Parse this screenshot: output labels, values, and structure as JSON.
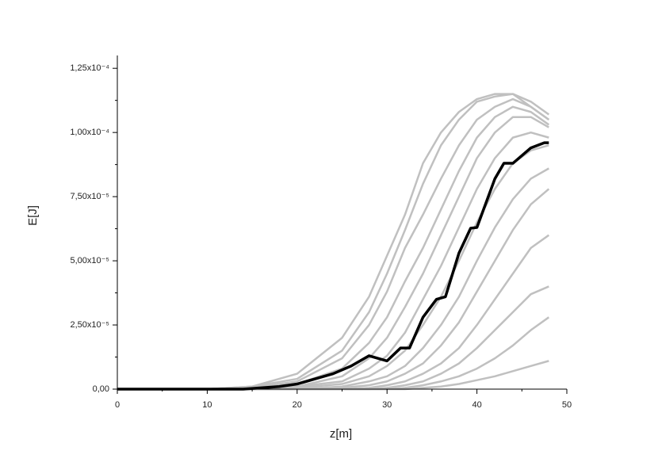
{
  "chart_data": {
    "type": "line",
    "x_label": "z[m]",
    "y_label": "E[J]",
    "xlim": [
      0,
      50
    ],
    "ylim": [
      0,
      0.00013
    ],
    "xticks": [
      0,
      10,
      20,
      30,
      40,
      50
    ],
    "xminorticks": [
      5,
      15,
      25,
      35,
      45
    ],
    "yticks": [
      {
        "value": 0,
        "label": "0,00"
      },
      {
        "value": 2.5e-05,
        "label": "2,50x10⁻⁵"
      },
      {
        "value": 5e-05,
        "label": "5,00x10⁻⁵"
      },
      {
        "value": 7.5e-05,
        "label": "7,50x10⁻⁵"
      },
      {
        "value": 0.0001,
        "label": "1,00x10⁻⁴"
      },
      {
        "value": 0.000125,
        "label": "1,25x10⁻⁴"
      }
    ],
    "yminorticks": [
      1.25e-05,
      3.75e-05,
      6.25e-05,
      8.75e-05,
      0.0001125
    ],
    "grid": false,
    "series": [
      {
        "color": "#c0c0c0",
        "x": [
          0,
          10,
          15,
          20,
          25,
          28,
          30,
          32,
          34,
          36,
          38,
          40,
          42,
          44,
          46,
          48
        ],
        "values": [
          0,
          0,
          1e-06,
          4e-06,
          1.5e-05,
          3e-05,
          4.5e-05,
          6.2e-05,
          8e-05,
          9.5e-05,
          0.000105,
          0.000112,
          0.000114,
          0.000115,
          0.000112,
          0.000107
        ]
      },
      {
        "color": "#c0c0c0",
        "x": [
          0,
          10,
          15,
          20,
          25,
          28,
          30,
          32,
          34,
          36,
          38,
          40,
          42,
          44,
          46,
          48
        ],
        "values": [
          0,
          0,
          5e-07,
          3e-06,
          1.2e-05,
          2.5e-05,
          3.8e-05,
          5.5e-05,
          6.8e-05,
          8.2e-05,
          9.5e-05,
          0.000105,
          0.00011,
          0.000113,
          0.00011,
          0.000105
        ]
      },
      {
        "color": "#c0c0c0",
        "x": [
          0,
          10,
          15,
          20,
          25,
          28,
          30,
          32,
          34,
          36,
          38,
          40,
          42,
          44,
          46,
          48
        ],
        "values": [
          0,
          0,
          5e-07,
          2e-06,
          8e-06,
          1.8e-05,
          2.8e-05,
          4.2e-05,
          5.5e-05,
          7e-05,
          8.5e-05,
          9.8e-05,
          0.000106,
          0.00011,
          0.000108,
          0.000103
        ]
      },
      {
        "color": "#c0c0c0",
        "x": [
          0,
          10,
          15,
          20,
          25,
          28,
          30,
          32,
          34,
          36,
          38,
          40,
          42,
          44,
          46,
          48
        ],
        "values": [
          0,
          0,
          0,
          1e-06,
          5e-06,
          1.2e-05,
          2e-05,
          3.2e-05,
          4.5e-05,
          6e-05,
          7.5e-05,
          9e-05,
          0.0001,
          0.000106,
          0.000106,
          0.000102
        ]
      },
      {
        "color": "#c0c0c0",
        "x": [
          0,
          10,
          15,
          20,
          25,
          28,
          30,
          32,
          34,
          36,
          38,
          40,
          42,
          44,
          46,
          48
        ],
        "values": [
          0,
          0,
          0,
          1e-06,
          3e-06,
          8e-06,
          1.3e-05,
          2.2e-05,
          3.5e-05,
          4.8e-05,
          6.3e-05,
          7.8e-05,
          9e-05,
          9.8e-05,
          0.0001,
          9.8e-05
        ]
      },
      {
        "color": "#c0c0c0",
        "x": [
          0,
          10,
          15,
          20,
          25,
          28,
          30,
          32,
          34,
          36,
          38,
          40,
          42,
          44,
          46,
          48
        ],
        "values": [
          0,
          0,
          0,
          5e-07,
          2e-06,
          5e-06,
          9e-06,
          1.5e-05,
          2.5e-05,
          3.6e-05,
          5e-05,
          6.5e-05,
          7.8e-05,
          8.8e-05,
          9.3e-05,
          9.5e-05
        ]
      },
      {
        "color": "#c0c0c0",
        "x": [
          0,
          10,
          15,
          20,
          25,
          28,
          30,
          32,
          34,
          36,
          38,
          40,
          42,
          44,
          46,
          48
        ],
        "values": [
          0,
          0,
          0,
          0,
          1e-06,
          3e-06,
          5e-06,
          9e-06,
          1.6e-05,
          2.5e-05,
          3.6e-05,
          5e-05,
          6.3e-05,
          7.4e-05,
          8.2e-05,
          8.6e-05
        ]
      },
      {
        "color": "#c0c0c0",
        "x": [
          0,
          10,
          15,
          20,
          25,
          28,
          30,
          32,
          34,
          36,
          38,
          40,
          42,
          44,
          46,
          48
        ],
        "values": [
          0,
          0,
          0,
          0,
          5e-07,
          1.5e-06,
          3e-06,
          6e-06,
          1e-05,
          1.7e-05,
          2.6e-05,
          3.8e-05,
          5e-05,
          6.2e-05,
          7.2e-05,
          7.8e-05
        ]
      },
      {
        "color": "#c0c0c0",
        "x": [
          0,
          10,
          15,
          20,
          25,
          28,
          30,
          32,
          34,
          36,
          38,
          40,
          42,
          44,
          46,
          48
        ],
        "values": [
          0,
          0,
          0,
          0,
          0,
          5e-07,
          1.5e-06,
          3e-06,
          6e-06,
          1e-05,
          1.6e-05,
          2.5e-05,
          3.5e-05,
          4.5e-05,
          5.5e-05,
          6e-05
        ]
      },
      {
        "color": "#c0c0c0",
        "x": [
          0,
          10,
          15,
          20,
          25,
          28,
          30,
          32,
          34,
          36,
          38,
          40,
          42,
          44,
          46,
          48
        ],
        "values": [
          0,
          0,
          0,
          0,
          0,
          0,
          5e-07,
          1.5e-06,
          3e-06,
          6e-06,
          1e-05,
          1.6e-05,
          2.3e-05,
          3e-05,
          3.7e-05,
          4e-05
        ]
      },
      {
        "color": "#c0c0c0",
        "x": [
          0,
          10,
          15,
          20,
          25,
          28,
          30,
          32,
          34,
          36,
          38,
          40,
          42,
          44,
          46,
          48
        ],
        "values": [
          0,
          0,
          0,
          0,
          0,
          0,
          0,
          5e-07,
          1.5e-06,
          3e-06,
          5e-06,
          8e-06,
          1.2e-05,
          1.7e-05,
          2.3e-05,
          2.8e-05
        ]
      },
      {
        "color": "#c0c0c0",
        "x": [
          0,
          10,
          15,
          20,
          25,
          28,
          30,
          32,
          34,
          36,
          38,
          40,
          42,
          44,
          46,
          48
        ],
        "values": [
          0,
          0,
          0,
          0,
          0,
          0,
          0,
          0,
          5e-07,
          1e-06,
          2e-06,
          3.5e-06,
          5e-06,
          7e-06,
          9e-06,
          1.1e-05
        ]
      },
      {
        "color": "#c0c0c0",
        "x": [
          0,
          10,
          15,
          20,
          25,
          28,
          30,
          32,
          34,
          36,
          38,
          40,
          42,
          44,
          46,
          48
        ],
        "values": [
          0,
          0,
          1e-06,
          6e-06,
          2e-05,
          3.6e-05,
          5.2e-05,
          6.8e-05,
          8.8e-05,
          0.0001,
          0.000108,
          0.000113,
          0.000115,
          0.000115,
          0.00011,
          0.000105
        ]
      },
      {
        "color": "#000000",
        "x": [
          0,
          10,
          14,
          16,
          18,
          20,
          22,
          24,
          26,
          28,
          30,
          31.5,
          32.5,
          34,
          35.5,
          36.5,
          38,
          39.3,
          40,
          42,
          43,
          44,
          46,
          47.5,
          48
        ],
        "values": [
          0,
          0,
          0,
          5e-07,
          1e-06,
          2e-06,
          4e-06,
          6e-06,
          9e-06,
          1.3e-05,
          1.1e-05,
          1.6e-05,
          1.6e-05,
          2.8e-05,
          3.5e-05,
          3.6e-05,
          5.3e-05,
          6.27e-05,
          6.3e-05,
          8.2e-05,
          8.8e-05,
          8.8e-05,
          9.4e-05,
          9.6e-05,
          9.6e-05
        ]
      }
    ]
  }
}
